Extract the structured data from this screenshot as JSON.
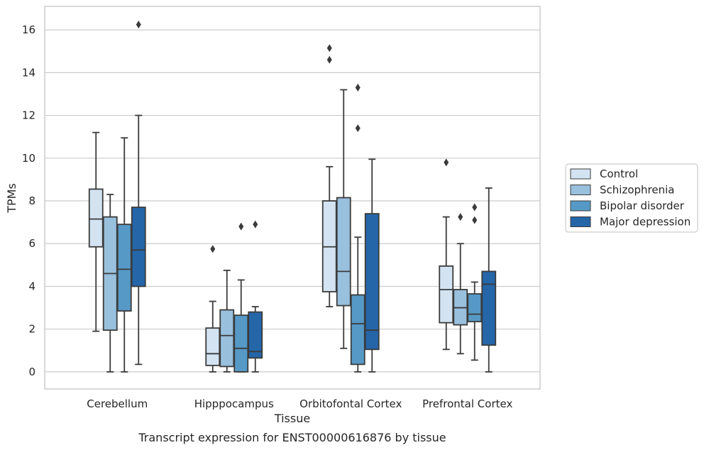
{
  "chart_data": {
    "type": "box",
    "xlabel": "Tissue",
    "ylabel": "TPMs",
    "caption": "Transcript expression for ENST00000616876 by tissue",
    "ylim": [
      -0.8,
      17.1
    ],
    "yticks": [
      0,
      2,
      4,
      6,
      8,
      10,
      12,
      14,
      16
    ],
    "grid": true,
    "legend_position": "right",
    "categories": [
      "Cerebellum",
      "Hipppocampus",
      "Orbitofontal Cortex",
      "Prefrontal Cortex"
    ],
    "series": [
      {
        "name": "Control",
        "color": "#d3e3f2",
        "boxes": [
          {
            "whisker_low": 1.9,
            "q1": 5.85,
            "median": 7.15,
            "q3": 8.55,
            "whisker_high": 11.2,
            "outliers": []
          },
          {
            "whisker_low": 0.0,
            "q1": 0.3,
            "median": 0.85,
            "q3": 2.05,
            "whisker_high": 3.3,
            "outliers": [
              5.75
            ]
          },
          {
            "whisker_low": 3.05,
            "q1": 3.75,
            "median": 5.85,
            "q3": 8.0,
            "whisker_high": 9.6,
            "outliers": [
              14.6,
              15.15
            ]
          },
          {
            "whisker_low": 1.05,
            "q1": 2.3,
            "median": 3.85,
            "q3": 4.95,
            "whisker_high": 7.25,
            "outliers": [
              9.8
            ]
          }
        ]
      },
      {
        "name": "Schizophrenia",
        "color": "#99c0dd",
        "boxes": [
          {
            "whisker_low": 0.0,
            "q1": 1.95,
            "median": 4.6,
            "q3": 7.25,
            "whisker_high": 8.3,
            "outliers": []
          },
          {
            "whisker_low": 0.0,
            "q1": 0.25,
            "median": 1.7,
            "q3": 2.9,
            "whisker_high": 4.75,
            "outliers": []
          },
          {
            "whisker_low": 1.1,
            "q1": 3.1,
            "median": 4.7,
            "q3": 8.15,
            "whisker_high": 13.2,
            "outliers": []
          },
          {
            "whisker_low": 0.85,
            "q1": 2.2,
            "median": 3.0,
            "q3": 3.85,
            "whisker_high": 6.0,
            "outliers": [
              7.25
            ]
          }
        ]
      },
      {
        "name": "Bipolar disorder",
        "color": "#5699c6",
        "boxes": [
          {
            "whisker_low": 0.0,
            "q1": 2.85,
            "median": 4.8,
            "q3": 6.9,
            "whisker_high": 10.95,
            "outliers": []
          },
          {
            "whisker_low": 0.0,
            "q1": 0.0,
            "median": 1.1,
            "q3": 2.65,
            "whisker_high": 4.3,
            "outliers": [
              6.8
            ]
          },
          {
            "whisker_low": 0.0,
            "q1": 0.35,
            "median": 2.25,
            "q3": 3.6,
            "whisker_high": 6.3,
            "outliers": [
              11.4,
              13.3
            ]
          },
          {
            "whisker_low": 0.55,
            "q1": 2.35,
            "median": 2.7,
            "q3": 3.65,
            "whisker_high": 4.2,
            "outliers": [
              7.1,
              7.7
            ]
          }
        ]
      },
      {
        "name": "Major depression",
        "color": "#2566a9",
        "boxes": [
          {
            "whisker_low": 0.35,
            "q1": 4.0,
            "median": 5.7,
            "q3": 7.7,
            "whisker_high": 12.0,
            "outliers": [
              16.25
            ]
          },
          {
            "whisker_low": 0.0,
            "q1": 0.65,
            "median": 0.95,
            "q3": 2.8,
            "whisker_high": 3.05,
            "outliers": [
              6.9
            ]
          },
          {
            "whisker_low": 0.0,
            "q1": 1.05,
            "median": 1.95,
            "q3": 7.4,
            "whisker_high": 9.95,
            "outliers": []
          },
          {
            "whisker_low": 0.0,
            "q1": 1.25,
            "median": 4.1,
            "q3": 4.7,
            "whisker_high": 8.6,
            "outliers": []
          }
        ]
      }
    ]
  }
}
